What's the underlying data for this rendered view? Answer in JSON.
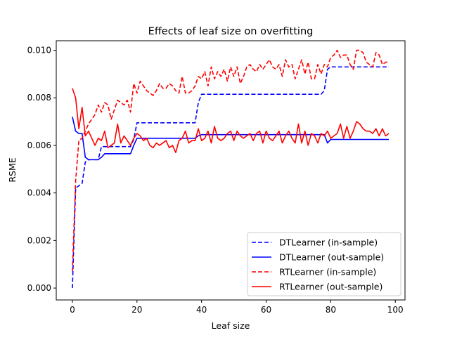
{
  "chart_data": {
    "type": "line",
    "title": "Effects of leaf size on overfitting",
    "xlabel": "Leaf size",
    "ylabel": "RSME",
    "xlim": [
      -5,
      103
    ],
    "ylim": [
      -0.0005,
      0.0104
    ],
    "xticks": [
      0,
      20,
      40,
      60,
      80,
      100
    ],
    "xtick_labels": [
      "0",
      "20",
      "40",
      "60",
      "80",
      "100"
    ],
    "yticks": [
      0.0,
      0.002,
      0.004,
      0.006,
      0.008,
      0.01
    ],
    "ytick_labels": [
      "0.000",
      "0.002",
      "0.004",
      "0.006",
      "0.008",
      "0.010"
    ],
    "grid": false,
    "legend_position": "lower-right",
    "x": [
      0,
      1,
      2,
      3,
      4,
      5,
      6,
      7,
      8,
      9,
      10,
      11,
      12,
      13,
      14,
      15,
      16,
      17,
      18,
      19,
      20,
      21,
      22,
      23,
      24,
      25,
      26,
      27,
      28,
      29,
      30,
      31,
      32,
      33,
      34,
      35,
      36,
      37,
      38,
      39,
      40,
      41,
      42,
      43,
      44,
      45,
      46,
      47,
      48,
      49,
      50,
      51,
      52,
      53,
      54,
      55,
      56,
      57,
      58,
      59,
      60,
      61,
      62,
      63,
      64,
      65,
      66,
      67,
      68,
      69,
      70,
      71,
      72,
      73,
      74,
      75,
      76,
      77,
      78,
      79,
      80,
      81,
      82,
      83,
      84,
      85,
      86,
      87,
      88,
      89,
      90,
      91,
      92,
      93,
      94,
      95,
      96,
      97,
      98
    ],
    "series": [
      {
        "name": "DTLearner (in-sample)",
        "color": "#0000ff",
        "style": "dashed",
        "values": [
          0.0,
          0.0042,
          0.0043,
          0.0044,
          0.0053,
          0.0054,
          0.0054,
          0.0054,
          0.0054,
          0.00595,
          0.00595,
          0.00595,
          0.00595,
          0.00595,
          0.00595,
          0.00595,
          0.00595,
          0.00595,
          0.00595,
          0.00625,
          0.00695,
          0.00695,
          0.00695,
          0.00695,
          0.00695,
          0.00695,
          0.00695,
          0.00695,
          0.00695,
          0.00695,
          0.00695,
          0.00695,
          0.00695,
          0.00695,
          0.00695,
          0.00695,
          0.00695,
          0.00695,
          0.00695,
          0.0078,
          0.00815,
          0.00815,
          0.00815,
          0.00815,
          0.00815,
          0.00815,
          0.00815,
          0.00815,
          0.00815,
          0.00815,
          0.00815,
          0.00815,
          0.00815,
          0.00815,
          0.00815,
          0.00815,
          0.00815,
          0.00815,
          0.00815,
          0.00815,
          0.00815,
          0.00815,
          0.00815,
          0.00815,
          0.00815,
          0.00815,
          0.00815,
          0.00815,
          0.00815,
          0.00815,
          0.00815,
          0.00815,
          0.00815,
          0.00815,
          0.00815,
          0.00815,
          0.00815,
          0.00815,
          0.0083,
          0.0092,
          0.0093,
          0.0093,
          0.0093,
          0.0093,
          0.0093,
          0.0093,
          0.0093,
          0.0093,
          0.0093,
          0.0093,
          0.0093,
          0.0093,
          0.0093,
          0.0093,
          0.0093,
          0.0093,
          0.0093,
          0.0093,
          0.0093
        ]
      },
      {
        "name": "DTLearner (out-sample)",
        "color": "#0000ff",
        "style": "solid",
        "values": [
          0.0072,
          0.0066,
          0.0065,
          0.0065,
          0.0055,
          0.0054,
          0.0054,
          0.0054,
          0.0054,
          0.0055,
          0.00565,
          0.00565,
          0.00565,
          0.00565,
          0.00565,
          0.00565,
          0.00565,
          0.00565,
          0.00565,
          0.006,
          0.0063,
          0.0063,
          0.0063,
          0.0063,
          0.0063,
          0.0063,
          0.0063,
          0.0063,
          0.0063,
          0.0063,
          0.0063,
          0.0063,
          0.0063,
          0.0063,
          0.0063,
          0.0063,
          0.0063,
          0.0063,
          0.0063,
          0.0064,
          0.00645,
          0.00645,
          0.00645,
          0.00645,
          0.00645,
          0.00645,
          0.00645,
          0.00645,
          0.00645,
          0.00645,
          0.00645,
          0.00645,
          0.00645,
          0.00645,
          0.00645,
          0.00645,
          0.00645,
          0.00645,
          0.00645,
          0.00645,
          0.00645,
          0.00645,
          0.00645,
          0.00645,
          0.00645,
          0.00645,
          0.00645,
          0.00645,
          0.00645,
          0.00645,
          0.00645,
          0.00645,
          0.00645,
          0.00645,
          0.00645,
          0.00645,
          0.00645,
          0.00645,
          0.00645,
          0.0061,
          0.00625,
          0.00625,
          0.00625,
          0.00625,
          0.00625,
          0.00625,
          0.00625,
          0.00625,
          0.00625,
          0.00625,
          0.00625,
          0.00625,
          0.00625,
          0.00625,
          0.00625,
          0.00625,
          0.00625,
          0.00625,
          0.00625
        ]
      },
      {
        "name": "RTLearner (in-sample)",
        "color": "#ff0000",
        "style": "dashed",
        "values": [
          0.0007,
          0.0045,
          0.0062,
          0.0063,
          0.0066,
          0.0069,
          0.0071,
          0.0073,
          0.0077,
          0.0074,
          0.0078,
          0.0077,
          0.0071,
          0.0075,
          0.0079,
          0.0078,
          0.0077,
          0.0079,
          0.0074,
          0.0086,
          0.0082,
          0.0087,
          0.0085,
          0.0083,
          0.0082,
          0.0081,
          0.0083,
          0.0086,
          0.0084,
          0.0084,
          0.0086,
          0.0085,
          0.0083,
          0.0082,
          0.0089,
          0.0082,
          0.0082,
          0.0083,
          0.0085,
          0.0089,
          0.0088,
          0.0091,
          0.0085,
          0.0093,
          0.0088,
          0.0091,
          0.0089,
          0.0092,
          0.0087,
          0.0093,
          0.0089,
          0.0093,
          0.0086,
          0.0089,
          0.0093,
          0.0094,
          0.0092,
          0.0091,
          0.0094,
          0.0092,
          0.0094,
          0.0096,
          0.0093,
          0.0092,
          0.0094,
          0.0089,
          0.0096,
          0.0093,
          0.0094,
          0.0088,
          0.0092,
          0.0096,
          0.009,
          0.0095,
          0.0088,
          0.0088,
          0.0094,
          0.009,
          0.0094,
          0.0093,
          0.0097,
          0.0098,
          0.01,
          0.0097,
          0.0098,
          0.0098,
          0.0094,
          0.0092,
          0.01,
          0.01,
          0.0099,
          0.0095,
          0.0094,
          0.0093,
          0.0099,
          0.0098,
          0.0094,
          0.0095,
          0.0095
        ]
      },
      {
        "name": "RTLearner (out-sample)",
        "color": "#ff0000",
        "style": "solid",
        "values": [
          0.0084,
          0.008,
          0.0067,
          0.0076,
          0.0064,
          0.0066,
          0.0063,
          0.006,
          0.0063,
          0.0062,
          0.0066,
          0.0059,
          0.006,
          0.0061,
          0.0069,
          0.0061,
          0.0064,
          0.0062,
          0.006,
          0.0063,
          0.0065,
          0.0064,
          0.0062,
          0.0063,
          0.006,
          0.0059,
          0.0061,
          0.006,
          0.0061,
          0.0062,
          0.0059,
          0.006,
          0.0057,
          0.0062,
          0.0063,
          0.0066,
          0.0061,
          0.0062,
          0.0062,
          0.0067,
          0.0062,
          0.0063,
          0.0066,
          0.0061,
          0.0068,
          0.0063,
          0.0062,
          0.0063,
          0.0065,
          0.0066,
          0.0062,
          0.0066,
          0.0064,
          0.0063,
          0.0064,
          0.0065,
          0.0062,
          0.0065,
          0.0066,
          0.0061,
          0.0066,
          0.0063,
          0.0062,
          0.0064,
          0.0066,
          0.0061,
          0.0064,
          0.0066,
          0.0063,
          0.0061,
          0.0069,
          0.0061,
          0.0066,
          0.006,
          0.0065,
          0.0064,
          0.0061,
          0.0065,
          0.0064,
          0.0066,
          0.0063,
          0.0064,
          0.0065,
          0.0069,
          0.0063,
          0.0068,
          0.0063,
          0.0066,
          0.007,
          0.0069,
          0.0067,
          0.0066,
          0.0066,
          0.0065,
          0.0067,
          0.0064,
          0.0067,
          0.0064,
          0.0065
        ]
      }
    ]
  }
}
